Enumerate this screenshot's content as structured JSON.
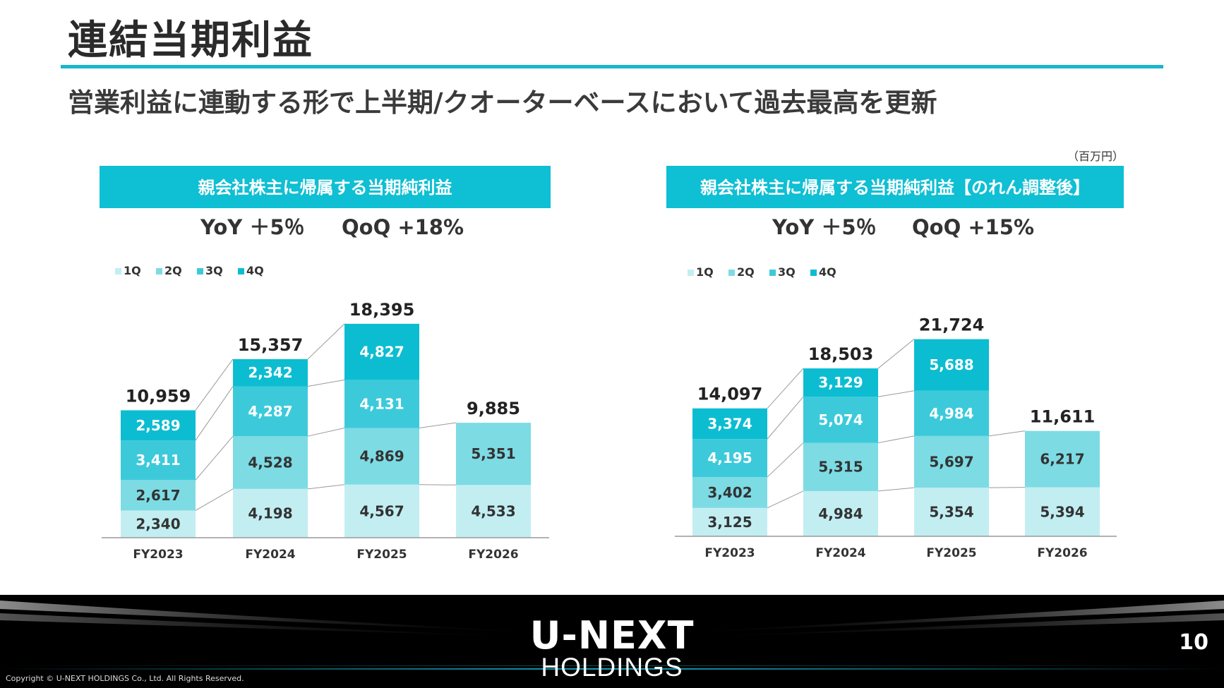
{
  "header": {
    "title": "連結当期利益",
    "subtitle": "営業利益に連動する形で上半期/クオーターベースにおいて過去最高を更新",
    "unit": "（百万円）"
  },
  "colors": {
    "q1": "#c2eef2",
    "q2": "#7ddbe4",
    "q3": "#3ccadb",
    "q4": "#0cbdd1",
    "banner": "#0fbfd3",
    "accent_rule": "#19b6cc"
  },
  "chart_data": [
    {
      "type": "bar",
      "stacked": true,
      "title": "親会社株主に帰属する当期純利益",
      "growth_text": {
        "yoy": "YoY ＋5％",
        "qoq": "QoQ +18%"
      },
      "legend": [
        "1Q",
        "2Q",
        "3Q",
        "4Q"
      ],
      "categories": [
        "FY2023",
        "FY2024",
        "FY2025",
        "FY2026"
      ],
      "series": [
        {
          "name": "1Q",
          "values": [
            2340,
            4198,
            4567,
            4533
          ]
        },
        {
          "name": "2Q",
          "values": [
            2617,
            4528,
            4869,
            5351
          ]
        },
        {
          "name": "3Q",
          "values": [
            3411,
            4287,
            4131,
            null
          ]
        },
        {
          "name": "4Q",
          "values": [
            2589,
            2342,
            4827,
            null
          ]
        }
      ],
      "totals": [
        10959,
        15357,
        18395,
        9885
      ],
      "total_labels": [
        "10,959",
        "15,357",
        "18,395",
        "9,885"
      ],
      "value_labels": [
        [
          "2,340",
          "4,198",
          "4,567",
          "4,533"
        ],
        [
          "2,617",
          "4,528",
          "4,869",
          "5,351"
        ],
        [
          "3,411",
          "4,287",
          "4,131",
          ""
        ],
        [
          "2,589",
          "2,342",
          "4,827",
          ""
        ]
      ]
    },
    {
      "type": "bar",
      "stacked": true,
      "title": "親会社株主に帰属する当期純利益【のれん調整後】",
      "growth_text": {
        "yoy": "YoY ＋5％",
        "qoq": "QoQ +15%"
      },
      "legend": [
        "1Q",
        "2Q",
        "3Q",
        "4Q"
      ],
      "categories": [
        "FY2023",
        "FY2024",
        "FY2025",
        "FY2026"
      ],
      "series": [
        {
          "name": "1Q",
          "values": [
            3125,
            4984,
            5354,
            5394
          ]
        },
        {
          "name": "2Q",
          "values": [
            3402,
            5315,
            5697,
            6217
          ]
        },
        {
          "name": "3Q",
          "values": [
            4195,
            5074,
            4984,
            null
          ]
        },
        {
          "name": "4Q",
          "values": [
            3374,
            3129,
            5688,
            null
          ]
        }
      ],
      "totals": [
        14097,
        18503,
        21724,
        11611
      ],
      "total_labels": [
        "14,097",
        "18,503",
        "21,724",
        "11,611"
      ],
      "value_labels": [
        [
          "3,125",
          "4,984",
          "5,354",
          "5,394"
        ],
        [
          "3,402",
          "5,315",
          "5,697",
          "6,217"
        ],
        [
          "4,195",
          "5,074",
          "4,984",
          ""
        ],
        [
          "3,374",
          "3,129",
          "5,688",
          ""
        ]
      ]
    }
  ],
  "footer": {
    "logo_line1": "U-NEXT",
    "logo_line2": "HOLDINGS",
    "page_number": "10",
    "copyright": "Copyright © U-NEXT HOLDINGS Co., Ltd. All Rights Reserved."
  }
}
